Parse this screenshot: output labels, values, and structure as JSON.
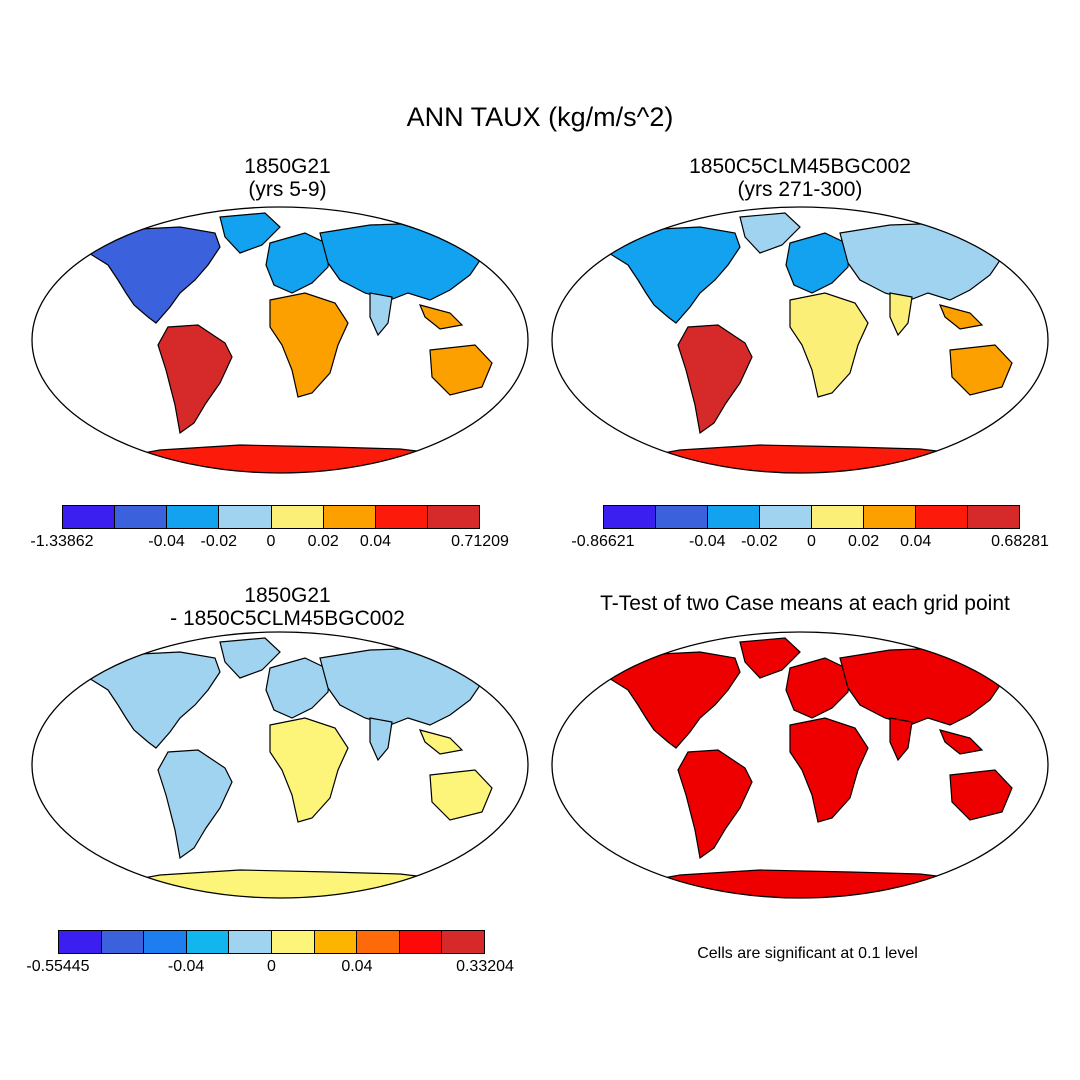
{
  "title": "ANN TAUX (kg/m/s^2)",
  "colors": {
    "ocean": "#ffffff",
    "coast": "#000000",
    "significant": "#ee0000"
  },
  "panels": [
    {
      "id": "case1",
      "title_line1": "1850G21",
      "title_line2": "(yrs 5-9)",
      "palette": [
        "#3a1ff0",
        "#3c61dd",
        "#12a2ef",
        "#9fd3ef",
        "#fcef78",
        "#fca000",
        "#fc1a0a",
        "#d62a2a"
      ],
      "labels": [
        "-1.33862",
        "-0.04",
        "-0.02",
        "0",
        "0.02",
        "0.04",
        "0.71209"
      ],
      "regions": {
        "namerica": "#3c61dd",
        "greenland": "#12a2ef",
        "samerica": "#d62a2a",
        "africa": "#fca000",
        "europe": "#12a2ef",
        "asia": "#12a2ef",
        "india": "#9fd3ef",
        "seasia": "#fca000",
        "australia": "#fca000",
        "antarctica": "#fc1a0a"
      }
    },
    {
      "id": "case2",
      "title_line1": "1850C5CLM45BGC002",
      "title_line2": "(yrs 271-300)",
      "palette": [
        "#3a1ff0",
        "#3c61dd",
        "#12a2ef",
        "#9fd3ef",
        "#fcef78",
        "#fca000",
        "#fc1a0a",
        "#d62a2a"
      ],
      "labels": [
        "-0.86621",
        "-0.04",
        "-0.02",
        "0",
        "0.02",
        "0.04",
        "0.68281"
      ],
      "regions": {
        "namerica": "#12a2ef",
        "greenland": "#9fd3ef",
        "samerica": "#d62a2a",
        "africa": "#fcef78",
        "europe": "#12a2ef",
        "asia": "#9fd3ef",
        "india": "#fcef78",
        "seasia": "#fca000",
        "australia": "#fca000",
        "antarctica": "#fc1a0a"
      }
    },
    {
      "id": "diff",
      "title_line1": "1850G21",
      "title_line2": "- 1850C5CLM45BGC002",
      "palette": [
        "#3a1ff0",
        "#3c61dd",
        "#1e7ef0",
        "#12b6ef",
        "#9fd3ef",
        "#fcf57a",
        "#fcb400",
        "#fc6a0a",
        "#fc0a0a",
        "#d62a2a"
      ],
      "labels": [
        "-0.55445",
        "-0.04",
        "0",
        "0.04",
        "0.33204"
      ],
      "regions": {
        "namerica": "#9fd3ef",
        "greenland": "#9fd3ef",
        "samerica": "#9fd3ef",
        "africa": "#fcf57a",
        "europe": "#9fd3ef",
        "asia": "#9fd3ef",
        "india": "#9fd3ef",
        "seasia": "#fcf57a",
        "australia": "#fcf57a",
        "antarctica": "#fcf57a"
      }
    },
    {
      "id": "ttest",
      "title_line1": "T-Test of two Case means at each grid point",
      "title_line2": "",
      "note": "Cells are significant at 0.1 level"
    }
  ]
}
